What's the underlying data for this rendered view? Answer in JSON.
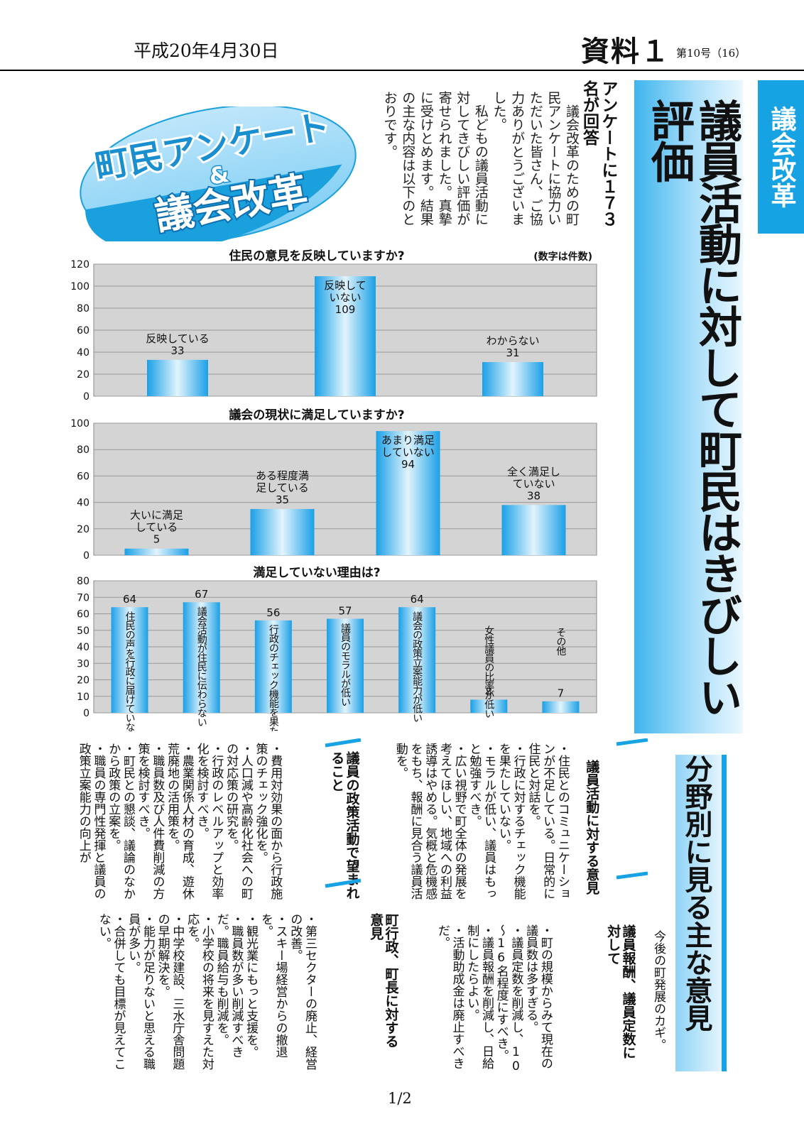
{
  "header": {
    "date": "平成20年4月30日",
    "doc_label": "資料１",
    "issue": "第10号（16）"
  },
  "tag": "議会改革",
  "headline": "議員活動に対して町民はきびしい評価",
  "badge": {
    "line1": "町民アンケート",
    "amp": "&",
    "line2": "議会改革"
  },
  "lead": {
    "title": "アンケートに１７３名が回答",
    "paragraphs": [
      "議会改革のための町民アンケートに協力いただいた皆さん、ご協力ありがとうございました。",
      "私どもの議員活動に対してきびしい評価が寄せられました。真摯に受けとめます。結果の主な内容は以下のとおりです。"
    ]
  },
  "colors": {
    "accent": "#17a2e4",
    "plot_bg": "#d4d4d4"
  },
  "chart_data": [
    {
      "type": "bar",
      "title": "住民の意見を反映していますか?",
      "note": "(数字は件数)",
      "categories": [
        "反映している",
        "反映していない",
        "わからない"
      ],
      "values": [
        33,
        109,
        31
      ],
      "ylim": [
        0,
        120
      ],
      "yticks": [
        0,
        20,
        40,
        60,
        80,
        100,
        120
      ],
      "grid": true
    },
    {
      "type": "bar",
      "title": "議会の現状に満足していますか?",
      "categories": [
        "大いに満足している",
        "ある程度満足している",
        "あまり満足していない",
        "全く満足していない"
      ],
      "values": [
        5,
        35,
        94,
        38
      ],
      "ylim": [
        0,
        100
      ],
      "yticks": [
        0,
        20,
        40,
        60,
        80,
        100
      ],
      "grid": true
    },
    {
      "type": "bar",
      "title": "満足していない理由は?",
      "categories": [
        "住民の声を行政に届けていない",
        "議会活動が住民に伝わらない",
        "行政のチェック機能を果たしていない",
        "議員のモラルが低い",
        "議会の政策立案能力が低い",
        "女性議員の比率が低い",
        "その他"
      ],
      "values": [
        64,
        67,
        56,
        57,
        64,
        8,
        7
      ],
      "ylim": [
        0,
        80
      ],
      "yticks": [
        0,
        10,
        20,
        30,
        40,
        50,
        60,
        70,
        80
      ],
      "grid": true
    }
  ],
  "section": {
    "title": "分野別に見る主な意見",
    "subtitle": "今後の町発展のカギ。",
    "groups": [
      {
        "label": "議員活動に対する意見",
        "items": [
          "・住民とのコミュニケーションが不足している。日常的に住民と対話を。",
          "・行政に対するチェック機能を果たしていない。",
          "・モラルが低い、議員はもっと勉強すべき。",
          "・広い視野で町全体の発展を考えてほしい、地域への利益誘導はやめる。気概と危機感をもち、報酬に見合う議員活動を。"
        ]
      },
      {
        "label": "議員報酬、議員定数に対して",
        "items": [
          "・町の規模からみて現在の議員数は多すぎる。",
          "・議員定数を削減し、10～16名程度にすべき。",
          "・議員報酬を削減し、日給制にしたらよい。",
          "・活動助成金は廃止すべきだ。"
        ]
      },
      {
        "label": "議員の政策活動で望まれること",
        "items": [
          "・費用対効果の面から行政施策のチェック強化を。",
          "・人口減や高齢化社会への町の対応策の研究を。",
          "・行政のレベルアップと効率化を検討すべき。",
          "・農業関係人材の育成、遊休荒廃地の活用策を。",
          "・職員数及び人件費削減の方策を検討すべき。",
          "・町民との懇談、議論のなかから政策の立案を。",
          "・職員の専門性発揮と議員の政策立案能力の向上が"
        ]
      },
      {
        "label": "町行政、町長に対する意見",
        "items": [
          "・第三セクターの廃止、経営の改善。",
          "・スキー場経営からの撤退を。",
          "・観光業にもっと支援を。",
          "・職員数が多い削減すべきだ。職員給与も削減を。",
          "・小学校の将来を見すえた対応を。",
          "・中学校建設、三水庁舎問題の早期解決を。",
          "・能力が足りないと思える職員が多い。",
          "・合併しても目標が見えてこない。"
        ]
      }
    ]
  },
  "footer": {
    "page": "1/2"
  }
}
